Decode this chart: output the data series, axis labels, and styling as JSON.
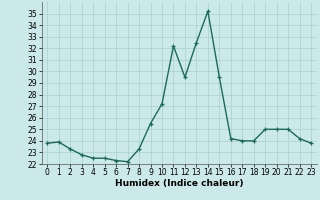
{
  "x": [
    0,
    1,
    2,
    3,
    4,
    5,
    6,
    7,
    8,
    9,
    10,
    11,
    12,
    13,
    14,
    15,
    16,
    17,
    18,
    19,
    20,
    21,
    22,
    23
  ],
  "y": [
    23.8,
    23.9,
    23.3,
    22.8,
    22.5,
    22.5,
    22.3,
    22.2,
    23.3,
    25.5,
    27.2,
    32.2,
    29.5,
    32.5,
    35.2,
    29.5,
    24.2,
    24.0,
    24.0,
    25.0,
    25.0,
    25.0,
    24.2,
    23.8
  ],
  "line_color": "#1a6b5a",
  "marker": "+",
  "marker_size": 3.5,
  "line_width": 1.0,
  "bg_color": "#cce9e9",
  "grid_color": "#aacece",
  "xlabel": "Humidex (Indice chaleur)",
  "ylim": [
    22,
    36
  ],
  "xlim": [
    -0.5,
    23.5
  ],
  "yticks": [
    22,
    23,
    24,
    25,
    26,
    27,
    28,
    29,
    30,
    31,
    32,
    33,
    34,
    35
  ],
  "xticks": [
    0,
    1,
    2,
    3,
    4,
    5,
    6,
    7,
    8,
    9,
    10,
    11,
    12,
    13,
    14,
    15,
    16,
    17,
    18,
    19,
    20,
    21,
    22,
    23
  ],
  "tick_fontsize": 5.5,
  "xlabel_fontsize": 6.5
}
